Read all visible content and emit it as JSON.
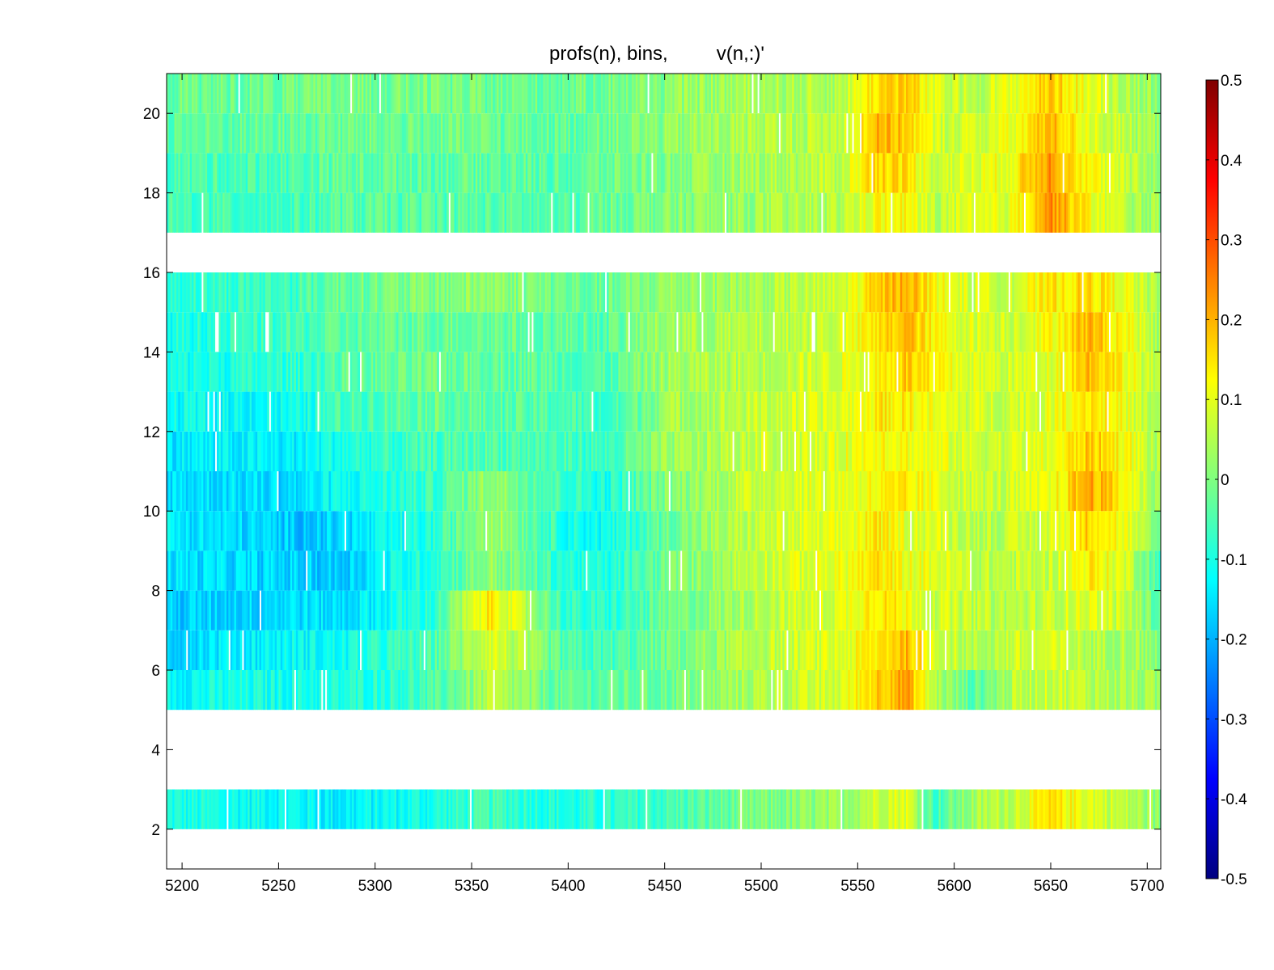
{
  "chart_data": {
    "type": "heatmap",
    "title": "profs(n), bins,         v(n,:)'",
    "xlabel": "",
    "ylabel": "",
    "xlim": [
      5192,
      5707
    ],
    "ylim": [
      1,
      21
    ],
    "x_ticks": [
      5200,
      5250,
      5300,
      5350,
      5400,
      5450,
      5500,
      5550,
      5600,
      5650,
      5700
    ],
    "y_ticks": [
      2,
      4,
      6,
      8,
      10,
      12,
      14,
      16,
      18,
      20
    ],
    "colormap": "jet",
    "clim": [
      -0.5,
      0.5
    ],
    "colorbar_ticks": [
      0.5,
      0.4,
      0.3,
      0.2,
      0.1,
      0,
      -0.1,
      -0.2,
      -0.3,
      -0.4,
      -0.5
    ],
    "colorbar_tick_labels": [
      "0.5",
      "0.4",
      "0.3",
      "0.2",
      "0.1",
      "0",
      "-0.1",
      "-0.2",
      "-0.3",
      "-0.4",
      "-0.5"
    ],
    "rows_with_data": [
      2,
      5,
      6,
      7,
      8,
      9,
      10,
      11,
      12,
      13,
      14,
      15,
      17,
      18,
      19,
      20
    ],
    "empty_rows": [
      1,
      3,
      4,
      16
    ],
    "x_profile_keypoints": [
      5192,
      5260,
      5280,
      5330,
      5360,
      5400,
      5420,
      5450,
      5500,
      5540,
      5560,
      5575,
      5590,
      5610,
      5630,
      5650,
      5670,
      5690,
      5707
    ],
    "rows": [
      {
        "y": 2,
        "values": [
          -0.1,
          -0.12,
          -0.14,
          -0.1,
          -0.06,
          -0.1,
          -0.09,
          -0.06,
          -0.01,
          0.02,
          0.08,
          0.1,
          -0.06,
          0.03,
          0.07,
          0.14,
          0.1,
          0.05,
          0.01
        ]
      },
      {
        "y": 5,
        "values": [
          -0.12,
          -0.1,
          -0.1,
          -0.06,
          0.05,
          -0.04,
          -0.03,
          -0.02,
          0.05,
          0.08,
          0.18,
          0.22,
          0.05,
          -0.04,
          0.05,
          0.08,
          0.06,
          0.04,
          0.02
        ]
      },
      {
        "y": 6,
        "values": [
          -0.16,
          -0.12,
          -0.12,
          -0.05,
          0.1,
          -0.06,
          -0.06,
          -0.02,
          0.06,
          0.09,
          0.14,
          0.2,
          0.1,
          0.04,
          0.07,
          0.08,
          0.05,
          0.05,
          0.0
        ]
      },
      {
        "y": 7,
        "values": [
          -0.18,
          -0.15,
          -0.16,
          -0.08,
          0.15,
          -0.08,
          -0.09,
          -0.03,
          0.06,
          0.09,
          0.16,
          0.12,
          0.08,
          0.06,
          0.05,
          0.07,
          0.1,
          0.06,
          -0.04
        ]
      },
      {
        "y": 8,
        "values": [
          -0.15,
          -0.17,
          -0.18,
          -0.08,
          0.02,
          -0.09,
          -0.1,
          -0.02,
          0.08,
          0.1,
          0.15,
          0.11,
          0.1,
          0.06,
          0.06,
          0.07,
          0.14,
          0.08,
          -0.06
        ]
      },
      {
        "y": 9,
        "values": [
          -0.14,
          -0.18,
          -0.17,
          -0.09,
          0.05,
          -0.1,
          -0.12,
          -0.02,
          0.07,
          0.09,
          0.14,
          0.1,
          0.09,
          0.06,
          0.06,
          0.08,
          0.18,
          0.1,
          -0.04
        ]
      },
      {
        "y": 10,
        "values": [
          -0.15,
          -0.16,
          -0.12,
          -0.07,
          0.03,
          -0.07,
          -0.1,
          0.0,
          0.08,
          0.1,
          0.12,
          0.13,
          0.1,
          0.07,
          0.07,
          0.1,
          0.22,
          0.12,
          0.02
        ]
      },
      {
        "y": 11,
        "values": [
          -0.14,
          -0.14,
          -0.1,
          -0.06,
          -0.04,
          -0.06,
          -0.07,
          0.02,
          0.07,
          0.09,
          0.14,
          0.12,
          0.1,
          0.08,
          0.08,
          0.1,
          0.18,
          0.12,
          0.03
        ]
      },
      {
        "y": 12,
        "values": [
          -0.12,
          -0.12,
          -0.06,
          -0.02,
          -0.04,
          -0.05,
          -0.08,
          0.03,
          0.07,
          0.09,
          0.14,
          0.14,
          0.1,
          0.08,
          0.08,
          0.1,
          0.16,
          0.1,
          0.02
        ]
      },
      {
        "y": 13,
        "values": [
          -0.11,
          -0.08,
          -0.04,
          -0.02,
          -0.02,
          -0.04,
          -0.05,
          0.03,
          0.06,
          0.09,
          0.13,
          0.18,
          0.12,
          0.09,
          0.08,
          0.1,
          0.2,
          0.12,
          0.03
        ]
      },
      {
        "y": 14,
        "values": [
          -0.1,
          -0.06,
          -0.04,
          -0.02,
          -0.02,
          -0.03,
          -0.04,
          0.03,
          0.05,
          0.08,
          0.14,
          0.2,
          0.12,
          0.09,
          0.08,
          0.12,
          0.2,
          0.12,
          0.03
        ]
      },
      {
        "y": 15,
        "values": [
          -0.08,
          -0.06,
          -0.02,
          0.0,
          0.02,
          -0.02,
          -0.03,
          0.02,
          0.04,
          0.07,
          0.16,
          0.22,
          0.12,
          0.08,
          0.08,
          0.14,
          0.16,
          0.1,
          0.02
        ]
      },
      {
        "y": 17,
        "values": [
          -0.06,
          -0.06,
          -0.04,
          -0.04,
          -0.04,
          -0.05,
          -0.02,
          0.0,
          0.03,
          0.05,
          0.12,
          0.12,
          0.06,
          0.08,
          0.1,
          0.24,
          0.12,
          0.05,
          0.02
        ]
      },
      {
        "y": 18,
        "values": [
          -0.05,
          -0.05,
          -0.03,
          -0.03,
          -0.03,
          -0.04,
          -0.02,
          0.0,
          0.04,
          0.06,
          0.18,
          0.15,
          0.08,
          0.09,
          0.12,
          0.24,
          0.12,
          0.06,
          0.02
        ]
      },
      {
        "y": 19,
        "values": [
          -0.03,
          -0.03,
          -0.02,
          -0.02,
          -0.02,
          -0.03,
          -0.01,
          0.01,
          0.05,
          0.06,
          0.2,
          0.18,
          0.08,
          0.08,
          0.1,
          0.2,
          0.1,
          0.05,
          0.02
        ]
      },
      {
        "y": 20,
        "values": [
          -0.02,
          -0.02,
          -0.01,
          -0.01,
          -0.02,
          -0.02,
          -0.01,
          0.01,
          0.04,
          0.05,
          0.16,
          0.18,
          0.08,
          0.06,
          0.1,
          0.18,
          0.1,
          0.05,
          0.02
        ]
      }
    ]
  }
}
